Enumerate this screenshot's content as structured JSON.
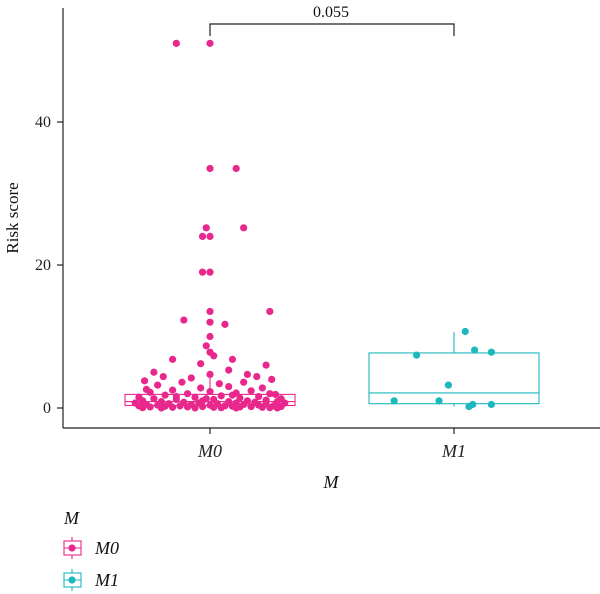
{
  "chart_data": {
    "type": "box",
    "ylabel": "Risk score",
    "xlabel": "M",
    "ylim": [
      -2.5,
      56
    ],
    "yticks": [
      0,
      20,
      40
    ],
    "categories": [
      "M0",
      "M1"
    ],
    "colors": {
      "M0": "#e8288c",
      "M1": "#1cb8bd"
    },
    "comparison": {
      "from": "M0",
      "to": "M1",
      "label": "0.055"
    },
    "legend": {
      "title": "M",
      "entries": [
        "M0",
        "M1"
      ],
      "position": "bottom-left"
    },
    "groups": [
      {
        "name": "M0",
        "box": {
          "q1": 0.35,
          "median": 0.9,
          "q3": 1.9,
          "whisker_low": 0.0,
          "whisker_high": 4.2
        },
        "points": [
          [
            -0.18,
            51.0
          ],
          [
            0.0,
            51.0
          ],
          [
            0.0,
            33.5
          ],
          [
            0.14,
            33.5
          ],
          [
            -0.02,
            25.2
          ],
          [
            0.18,
            25.2
          ],
          [
            -0.04,
            24.0
          ],
          [
            0.0,
            24.0
          ],
          [
            -0.04,
            19.0
          ],
          [
            0.0,
            19.0
          ],
          [
            0.0,
            13.5
          ],
          [
            0.32,
            13.5
          ],
          [
            -0.14,
            12.3
          ],
          [
            0.0,
            12.0
          ],
          [
            0.08,
            11.7
          ],
          [
            0.0,
            10.0
          ],
          [
            -0.02,
            8.7
          ],
          [
            0.0,
            7.8
          ],
          [
            0.02,
            7.3
          ],
          [
            -0.2,
            6.8
          ],
          [
            0.12,
            6.8
          ],
          [
            0.3,
            6.0
          ],
          [
            -0.05,
            6.2
          ],
          [
            0.1,
            5.3
          ],
          [
            -0.3,
            5.0
          ],
          [
            0.2,
            4.7
          ],
          [
            -0.25,
            4.4
          ],
          [
            0.25,
            4.4
          ],
          [
            0.0,
            4.7
          ],
          [
            -0.1,
            4.2
          ],
          [
            0.33,
            4.0
          ],
          [
            -0.35,
            3.8
          ],
          [
            -0.15,
            3.6
          ],
          [
            0.05,
            3.4
          ],
          [
            0.18,
            3.6
          ],
          [
            -0.28,
            3.2
          ],
          [
            0.1,
            3.0
          ],
          [
            -0.05,
            2.8
          ],
          [
            0.28,
            2.8
          ],
          [
            -0.2,
            2.5
          ],
          [
            0.22,
            2.4
          ],
          [
            0.0,
            2.3
          ],
          [
            -0.32,
            2.2
          ],
          [
            0.14,
            2.1
          ],
          [
            -0.12,
            2.0
          ],
          [
            0.35,
            1.9
          ],
          [
            -0.24,
            1.8
          ],
          [
            0.06,
            1.7
          ],
          [
            0.26,
            1.6
          ],
          [
            -0.38,
            1.5
          ],
          [
            -0.08,
            1.5
          ],
          [
            0.16,
            1.4
          ],
          [
            -0.3,
            1.3
          ],
          [
            0.38,
            1.3
          ],
          [
            -0.18,
            1.2
          ],
          [
            0.02,
            1.2
          ],
          [
            0.3,
            1.1
          ],
          [
            -0.36,
            1.0
          ],
          [
            -0.04,
            1.0
          ],
          [
            0.2,
            1.0
          ],
          [
            -0.26,
            0.9
          ],
          [
            0.1,
            0.9
          ],
          [
            0.36,
            0.9
          ],
          [
            -0.14,
            0.8
          ],
          [
            0.24,
            0.8
          ],
          [
            -0.4,
            0.7
          ],
          [
            -0.06,
            0.7
          ],
          [
            0.14,
            0.7
          ],
          [
            0.4,
            0.7
          ],
          [
            -0.22,
            0.6
          ],
          [
            0.04,
            0.6
          ],
          [
            0.3,
            0.6
          ],
          [
            -0.34,
            0.5
          ],
          [
            -0.1,
            0.5
          ],
          [
            0.18,
            0.5
          ],
          [
            -0.28,
            0.4
          ],
          [
            0.0,
            0.4
          ],
          [
            0.26,
            0.4
          ],
          [
            -0.38,
            0.3
          ],
          [
            -0.16,
            0.3
          ],
          [
            0.08,
            0.3
          ],
          [
            0.34,
            0.3
          ],
          [
            -0.24,
            0.25
          ],
          [
            0.12,
            0.25
          ],
          [
            -0.04,
            0.2
          ],
          [
            0.22,
            0.2
          ],
          [
            0.38,
            0.2
          ],
          [
            -0.32,
            0.15
          ],
          [
            -0.12,
            0.15
          ],
          [
            0.16,
            0.15
          ],
          [
            -0.2,
            0.1
          ],
          [
            0.02,
            0.1
          ],
          [
            0.28,
            0.1
          ],
          [
            -0.36,
            0.05
          ],
          [
            0.06,
            0.05
          ],
          [
            0.32,
            0.05
          ],
          [
            -0.26,
            0.0
          ],
          [
            -0.08,
            0.0
          ],
          [
            0.14,
            0.0
          ],
          [
            0.36,
            0.0
          ],
          [
            -0.18,
            1.6
          ],
          [
            0.32,
            2.0
          ],
          [
            -0.02,
            1.3
          ],
          [
            0.12,
            1.8
          ],
          [
            -0.34,
            2.6
          ]
        ]
      },
      {
        "name": "M1",
        "box": {
          "q1": 0.6,
          "median": 2.1,
          "q3": 7.7,
          "whisker_low": 0.2,
          "whisker_high": 10.6
        },
        "points": [
          [
            0.06,
            10.7
          ],
          [
            -0.2,
            7.4
          ],
          [
            0.11,
            8.1
          ],
          [
            0.2,
            7.8
          ],
          [
            -0.03,
            3.2
          ],
          [
            -0.32,
            1.0
          ],
          [
            -0.08,
            1.0
          ],
          [
            0.1,
            0.5
          ],
          [
            0.2,
            0.5
          ],
          [
            0.08,
            0.2
          ]
        ]
      }
    ]
  }
}
